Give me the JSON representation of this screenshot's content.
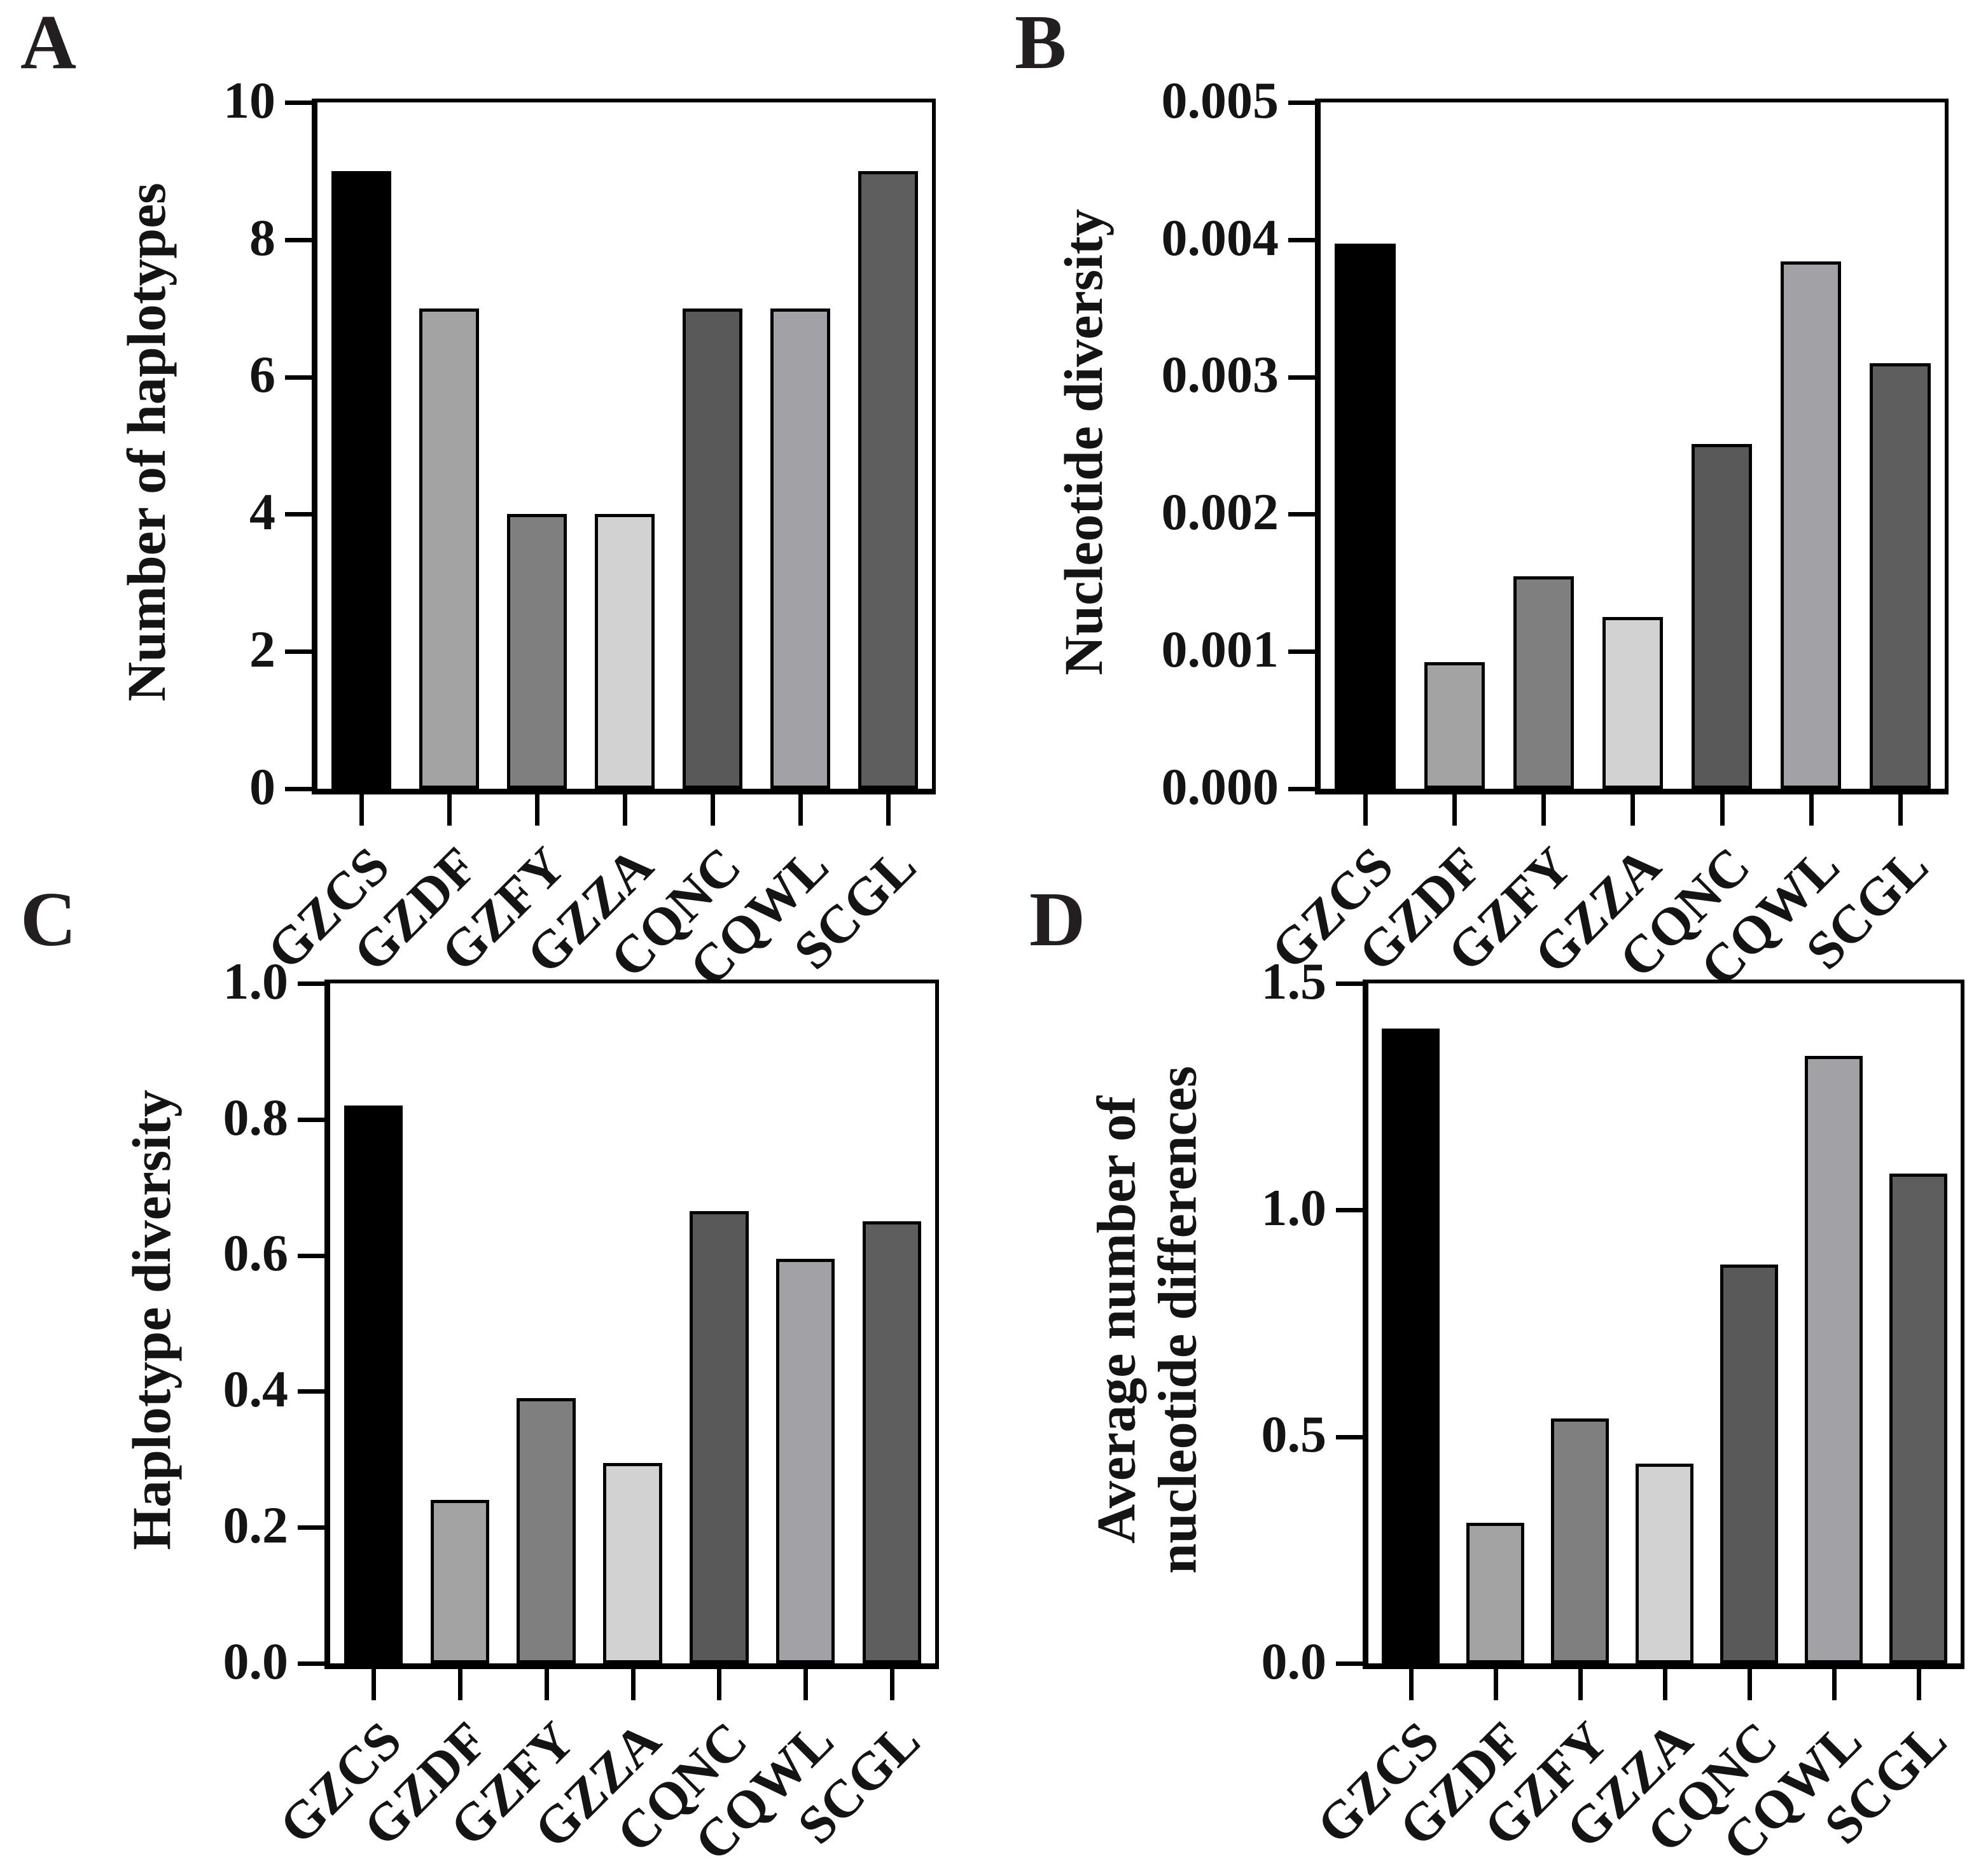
{
  "figure": {
    "background": "#ffffff",
    "text_color": "#141414",
    "axis_color": "#000000",
    "bar_edge_color": "#000000"
  },
  "categories": [
    "GZCS",
    "GZDF",
    "GZFY",
    "GZZA",
    "CQNC",
    "CQWL",
    "SCGL"
  ],
  "bar_colors": [
    "#000000",
    "#a3a3a3",
    "#7f7f7f",
    "#d2d2d2",
    "#595959",
    "#a2a2a6",
    "#5e5e5e"
  ],
  "chart_data": [
    {
      "type": "bar",
      "panel_label": "A",
      "ylabel": "Number of haplotypes",
      "ylabel_lines": [
        "Number of haplotypes"
      ],
      "xlabel": "",
      "categories": [
        "GZCS",
        "GZDF",
        "GZFY",
        "GZZA",
        "CQNC",
        "CQWL",
        "SCGL"
      ],
      "values": [
        9,
        7,
        4,
        4,
        7,
        7,
        9
      ],
      "ylim": [
        0,
        10
      ],
      "ytick_labels": [
        "0",
        "2",
        "4",
        "6",
        "8",
        "10"
      ],
      "grid": false,
      "legend": null
    },
    {
      "type": "bar",
      "panel_label": "B",
      "ylabel": "Nucleotide diversity",
      "ylabel_lines": [
        "Nucleotide diversity"
      ],
      "xlabel": "",
      "categories": [
        "GZCS",
        "GZDF",
        "GZFY",
        "GZZA",
        "CQNC",
        "CQWL",
        "SCGL"
      ],
      "values": [
        0.00397,
        0.00092,
        0.00155,
        0.00125,
        0.00251,
        0.00384,
        0.0031
      ],
      "ylim": [
        0,
        0.005
      ],
      "ytick_labels": [
        "0.000",
        "0.001",
        "0.002",
        "0.003",
        "0.004",
        "0.005"
      ],
      "grid": false,
      "legend": null
    },
    {
      "type": "bar",
      "panel_label": "C",
      "ylabel": "Haplotype diversity",
      "ylabel_lines": [
        "Haplotype diversity"
      ],
      "xlabel": "",
      "categories": [
        "GZCS",
        "GZDF",
        "GZFY",
        "GZZA",
        "CQNC",
        "CQWL",
        "SCGL"
      ],
      "values": [
        0.82,
        0.24,
        0.39,
        0.295,
        0.665,
        0.595,
        0.65
      ],
      "ylim": [
        0,
        1.0
      ],
      "ytick_labels": [
        "0.0",
        "0.2",
        "0.4",
        "0.6",
        "0.8",
        "1.0"
      ],
      "grid": false,
      "legend": null
    },
    {
      "type": "bar",
      "panel_label": "D",
      "ylabel": "Average number of nucleotide differences",
      "ylabel_lines": [
        "Average number of",
        "nucleotide differences"
      ],
      "xlabel": "",
      "categories": [
        "GZCS",
        "GZDF",
        "GZFY",
        "GZZA",
        "CQNC",
        "CQWL",
        "SCGL"
      ],
      "values": [
        1.4,
        0.31,
        0.54,
        0.44,
        0.88,
        1.34,
        1.08
      ],
      "ylim": [
        0,
        1.5
      ],
      "ytick_labels": [
        "0.0",
        "0.5",
        "1.0",
        "1.5"
      ],
      "grid": false,
      "legend": null
    }
  ]
}
